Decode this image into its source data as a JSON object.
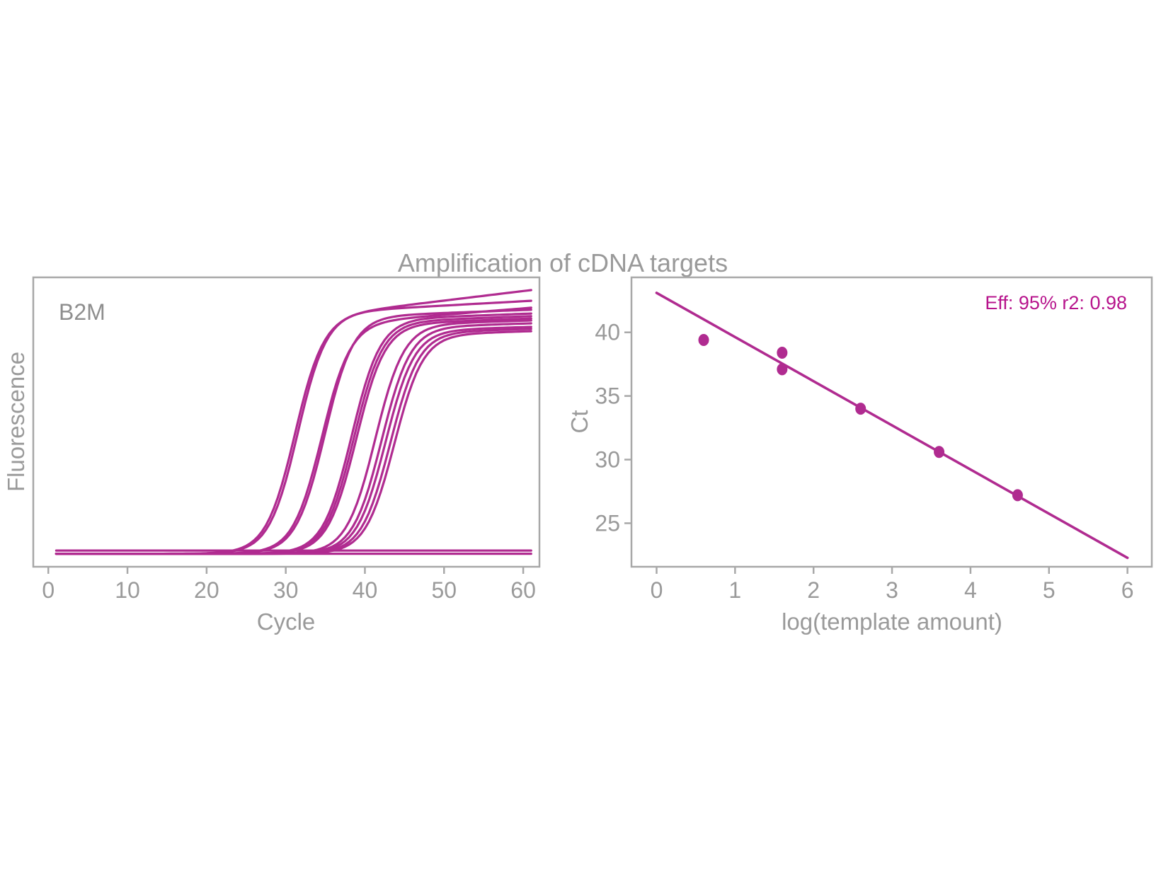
{
  "title": "Amplification of cDNA targets",
  "colors": {
    "curve": "#B02B90",
    "annotation": "#B7148C",
    "axis": "#A8A8A8",
    "label_text": "#9A9A9A"
  },
  "chart_data": [
    {
      "type": "line",
      "name": "amplification-curves",
      "panel_label": "B2M",
      "xlabel": "Cycle",
      "ylabel": "Fluorescence",
      "grid": false,
      "legend": "none",
      "xticks": [
        0,
        10,
        20,
        30,
        40,
        50,
        60
      ],
      "xlim": [
        -1.9,
        62.05
      ],
      "x_range_cycles": [
        1,
        61
      ],
      "baseline_fraction": 0.045,
      "flat_control_fractions": [
        0.045,
        0.056
      ],
      "sigmoid_steepness": 0.55,
      "series": [
        {
          "midpoint": 31.1,
          "plateau": 0.956,
          "drift": 0.0033
        },
        {
          "midpoint": 31.5,
          "plateau": 0.919,
          "drift": 0.0015
        },
        {
          "midpoint": 34.5,
          "plateau": 0.895,
          "drift": 0.0022
        },
        {
          "midpoint": 34.9,
          "plateau": 0.888,
          "drift": 0.001
        },
        {
          "midpoint": 38.3,
          "plateau": 0.875,
          "drift": 0.001
        },
        {
          "midpoint": 38.6,
          "plateau": 0.866,
          "drift": 0.001
        },
        {
          "midpoint": 38.9,
          "plateau": 0.858,
          "drift": 0.001
        },
        {
          "midpoint": 41.3,
          "plateau": 0.851,
          "drift": 0.0008
        },
        {
          "midpoint": 42.1,
          "plateau": 0.841,
          "drift": 0.0008
        },
        {
          "midpoint": 42.6,
          "plateau": 0.829,
          "drift": 0.0008
        },
        {
          "midpoint": 43.2,
          "plateau": 0.822,
          "drift": 0.0008
        },
        {
          "midpoint": 43.7,
          "plateau": 0.814,
          "drift": 0.0008
        }
      ]
    },
    {
      "type": "scatter",
      "name": "standard-curve",
      "xlabel": "log(template amount)",
      "ylabel": "Ct",
      "annotation": "Eff: 95% r2: 0.98",
      "grid": false,
      "legend": "none",
      "xticks": [
        0,
        1,
        2,
        3,
        4,
        5,
        6
      ],
      "yticks": [
        25,
        30,
        35,
        40
      ],
      "xlim": [
        -0.32,
        6.31
      ],
      "ylim": [
        21.58,
        44.32
      ],
      "points": [
        {
          "x": 0.6,
          "y": 39.4
        },
        {
          "x": 1.6,
          "y": 38.4
        },
        {
          "x": 1.6,
          "y": 37.1
        },
        {
          "x": 2.6,
          "y": 34.0
        },
        {
          "x": 3.6,
          "y": 30.6
        },
        {
          "x": 4.6,
          "y": 27.2
        }
      ],
      "fit_line": {
        "slope": -3.47,
        "intercept": 43.1,
        "x_start": 0,
        "x_end": 6
      }
    }
  ]
}
